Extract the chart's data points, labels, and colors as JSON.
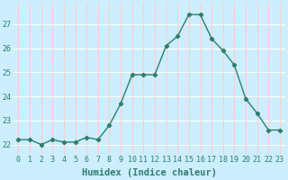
{
  "x": [
    0,
    1,
    2,
    3,
    4,
    5,
    6,
    7,
    8,
    9,
    10,
    11,
    12,
    13,
    14,
    15,
    16,
    17,
    18,
    19,
    20,
    21,
    22,
    23
  ],
  "y": [
    22.2,
    22.2,
    22.0,
    22.2,
    22.1,
    22.1,
    22.3,
    22.2,
    22.8,
    23.7,
    24.9,
    24.9,
    24.9,
    26.1,
    26.5,
    27.4,
    27.4,
    26.4,
    25.9,
    25.3,
    23.9,
    23.3,
    22.6,
    22.6
  ],
  "line_color": "#2e7d6e",
  "marker": "D",
  "marker_size": 2.2,
  "background_color": "#cceeff",
  "grid_color_h": "#ffffff",
  "grid_color_v": "#ffcccc",
  "xlabel": "Humidex (Indice chaleur)",
  "xlabel_fontsize": 7.5,
  "ylim": [
    21.6,
    27.9
  ],
  "xlim": [
    -0.5,
    23.5
  ],
  "yticks": [
    22,
    23,
    24,
    25,
    26,
    27
  ],
  "xticks": [
    0,
    1,
    2,
    3,
    4,
    5,
    6,
    7,
    8,
    9,
    10,
    11,
    12,
    13,
    14,
    15,
    16,
    17,
    18,
    19,
    20,
    21,
    22,
    23
  ],
  "tick_fontsize": 6,
  "line_width": 1.0,
  "tick_color": "#2e7d6e"
}
